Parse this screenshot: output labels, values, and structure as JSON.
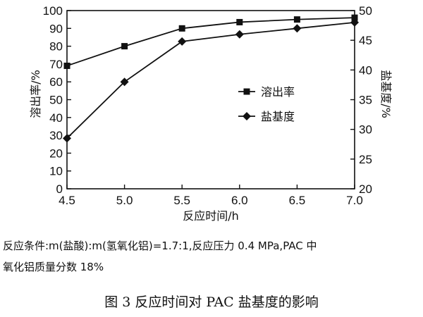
{
  "chart_data": {
    "type": "line",
    "x_label": "反应时间/h",
    "y_left_label": "溶出率/%",
    "y_right_label": "盐基度/%",
    "x": [
      4.5,
      5.0,
      5.5,
      6.0,
      6.5,
      7.0
    ],
    "x_tick_labels": [
      "4.5",
      "5.0",
      "5.5",
      "6.0",
      "6.5",
      "7.0"
    ],
    "y_left_range": [
      0,
      100
    ],
    "y_left_ticks": [
      0,
      10,
      20,
      30,
      40,
      50,
      60,
      70,
      80,
      90,
      100
    ],
    "y_right_range": [
      20,
      50
    ],
    "y_right_ticks": [
      20,
      25,
      30,
      35,
      40,
      45,
      50
    ],
    "grid": false,
    "legend_position": "right-middle",
    "series": [
      {
        "name": "溶出率",
        "axis": "left",
        "marker": "square",
        "values": [
          69,
          80,
          90,
          93.5,
          95,
          96
        ]
      },
      {
        "name": "盐基度",
        "axis": "right",
        "marker": "diamond",
        "values": [
          28.5,
          38,
          44.8,
          46,
          47,
          48
        ]
      }
    ]
  },
  "notes": {
    "line1": "反应条件:m(盐酸):m(氢氧化铝)=1.7:1,反应压力 0.4 MPa,PAC 中",
    "line2": "氧化铝质量分数 18%"
  },
  "figure_title": "图 3   反应时间对 PAC 盐基度的影响"
}
